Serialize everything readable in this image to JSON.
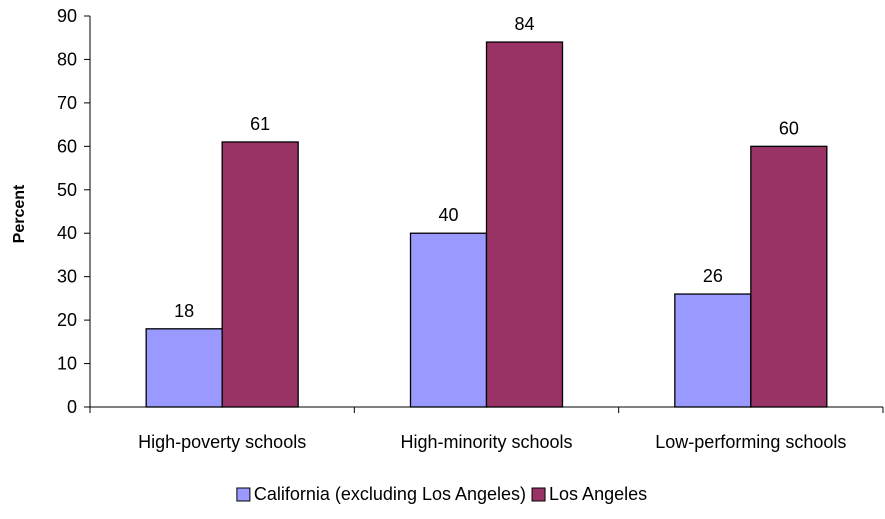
{
  "chart_data": {
    "type": "bar",
    "categories": [
      "High-poverty schools",
      "High-minority schools",
      "Low-performing schools"
    ],
    "series": [
      {
        "name": "California (excluding Los Angeles)",
        "values": [
          18,
          40,
          26
        ],
        "labels": [
          "18",
          "40",
          "26"
        ],
        "color": "#9999ff"
      },
      {
        "name": "Los Angeles",
        "values": [
          61,
          84,
          60
        ],
        "labels": [
          "61",
          "84",
          "60"
        ],
        "color": "#993366"
      }
    ],
    "ylabel": "Percent",
    "xlabel": "",
    "ylim": [
      0,
      90
    ],
    "yticks": [
      0,
      10,
      20,
      30,
      40,
      50,
      60,
      70,
      80,
      90
    ],
    "grid": false,
    "legend": "bottom"
  }
}
